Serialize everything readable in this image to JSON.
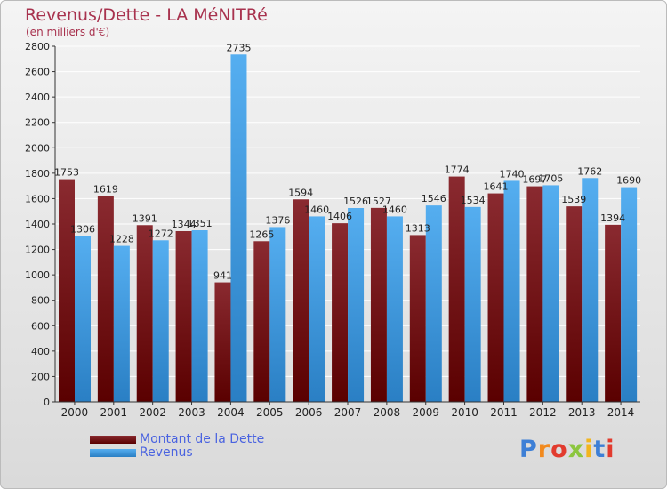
{
  "header": {
    "title": "Revenus/Dette - LA MéNITRé",
    "subtitle": "(en milliers d'€)"
  },
  "colors": {
    "dette": "#6b0b12",
    "revenus": "#3a8fdb",
    "title": "#a8324e",
    "legend_text": "#4a63e0"
  },
  "chart_data": {
    "type": "bar",
    "title": "Revenus/Dette - LA MéNITRé",
    "ylabel": "(en milliers d'€)",
    "xlabel": "",
    "categories": [
      "2000",
      "2001",
      "2002",
      "2003",
      "2004",
      "2005",
      "2006",
      "2007",
      "2008",
      "2009",
      "2010",
      "2011",
      "2012",
      "2013",
      "2014"
    ],
    "series": [
      {
        "name": "Montant de la Dette",
        "values": [
          1753,
          1619,
          1391,
          1344,
          941,
          1265,
          1594,
          1406,
          1527,
          1313,
          1774,
          1641,
          1697,
          1539,
          1394
        ]
      },
      {
        "name": "Revenus",
        "values": [
          1306,
          1228,
          1272,
          1351,
          2735,
          1376,
          1460,
          1526,
          1460,
          1546,
          1534,
          1740,
          1705,
          1762,
          1690
        ]
      }
    ],
    "ylim": [
      0,
      2800
    ],
    "yticks": [
      0,
      200,
      400,
      600,
      800,
      1000,
      1200,
      1400,
      1600,
      1800,
      2000,
      2200,
      2400,
      2600,
      2800
    ],
    "grid": true,
    "legend": "bottom-left"
  },
  "legend": [
    {
      "label": "Montant de la Dette"
    },
    {
      "label": "Revenus"
    }
  ],
  "logo": {
    "letters": [
      "P",
      "r",
      "o",
      "x",
      "i",
      "t",
      "i"
    ]
  }
}
